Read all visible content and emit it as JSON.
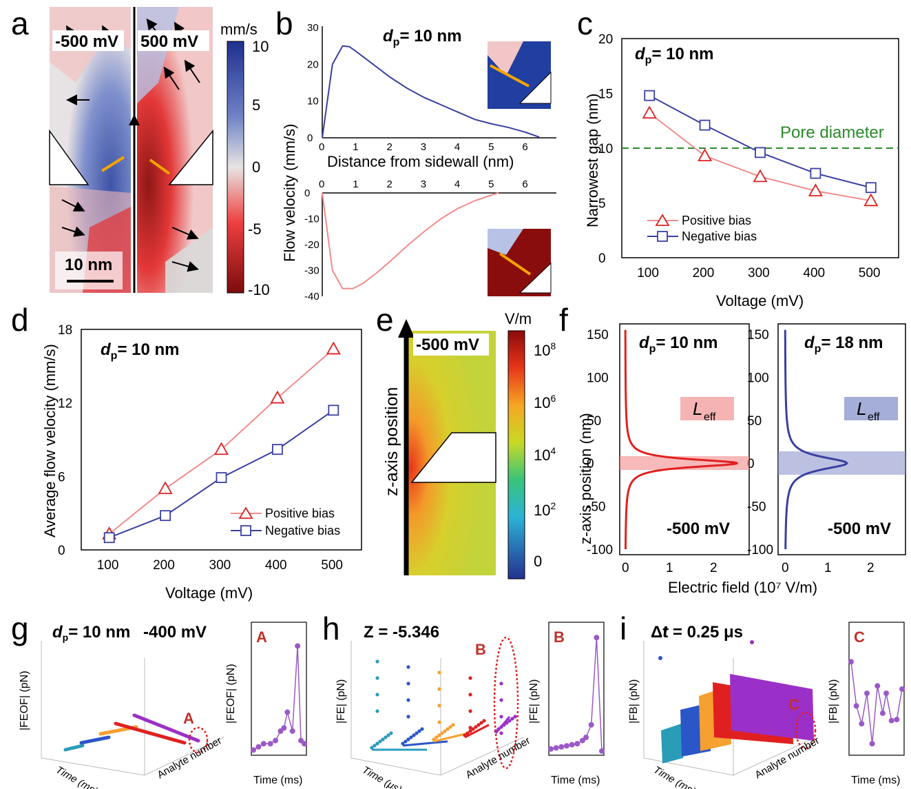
{
  "panels": {
    "a": {
      "letter": "a",
      "left_label": "-500 mV",
      "right_label": "500 mV",
      "scale_bar": "10 nm",
      "colorbar_unit": "mm/s",
      "colorbar_ticks": [
        "10",
        "5",
        "0",
        "-5",
        "-10"
      ]
    },
    "b": {
      "letter": "b",
      "title": "= 10 nm",
      "ylabel": "Flow velocity (mm/s)",
      "xlabel": "Distance from sidewall (nm)"
    },
    "c": {
      "letter": "c",
      "title": "= 10 nm",
      "ylabel": "Narrowest gap (nm)",
      "xlabel": "Voltage (mV)",
      "ref_label": "Pore diameter",
      "legend_pos": "Positive bias",
      "legend_neg": "Negative bias"
    },
    "d": {
      "letter": "d",
      "title": "= 10 nm",
      "ylabel": "Average flow velocity (mm/s)",
      "xlabel": "Voltage (mV)",
      "legend_pos": "Positive bias",
      "legend_neg": "Negative bias"
    },
    "e": {
      "letter": "e",
      "label": "-500 mV",
      "axis_label": "z-axis position",
      "colorbar_unit": "V/m",
      "colorbar_ticks": [
        "108",
        "106",
        "104",
        "102",
        "0"
      ]
    },
    "f": {
      "letter": "f",
      "left_title": "= 10 nm",
      "right_title": "= 18 nm",
      "ylabel": "z-axis position (nm)",
      "xlabel": "Electric field (10⁷ V/m)",
      "bias": "-500 mV",
      "leff": "L",
      "leff_sub": "eff"
    },
    "g": {
      "letter": "g",
      "title": "= 10 nm",
      "bias": "-400 mV",
      "zlabel": "|FEOF| (pN)",
      "marker": "A",
      "inset_ylabel": "|FEOF| (pN)",
      "inset_xlabel": "Time (ms)",
      "xaxis": "Time (ms)",
      "yaxis": "Analyte number"
    },
    "h": {
      "letter": "h",
      "title": "Z = -5.346",
      "zlabel": "|FE| (pN)",
      "marker": "B",
      "inset_ylabel": "|FE| (pN)",
      "inset_xlabel": "Time (ms)",
      "xaxis": "Time (μs)",
      "yaxis": "Analyte number"
    },
    "i": {
      "letter": "i",
      "title": "t = 0.25 μs",
      "zlabel": "|FB| (pN)",
      "marker": "C",
      "inset_ylabel": "|FB| (pN)",
      "inset_xlabel": "Time (ms)",
      "xaxis": "Time (ms)",
      "yaxis": "Analyte number"
    }
  },
  "chart_data": [
    {
      "type": "line",
      "panel": "b-top",
      "x": [
        0,
        0.3,
        0.6,
        0.8,
        1,
        1.5,
        2,
        2.5,
        3,
        3.5,
        4,
        4.5,
        5,
        5.5,
        6,
        6.4
      ],
      "values": [
        0,
        20,
        25,
        24.8,
        23.5,
        20,
        16.5,
        13.5,
        11,
        9,
        7,
        5,
        3.8,
        2.8,
        1.5,
        0.2
      ],
      "xlim": [
        0,
        6.5
      ],
      "ylim": [
        0,
        30
      ],
      "color": "#3a3fa0"
    },
    {
      "type": "line",
      "panel": "b-bottom",
      "x": [
        0,
        0.3,
        0.6,
        0.9,
        1.2,
        1.6,
        2,
        2.5,
        3,
        3.5,
        4,
        4.5,
        5,
        5.2
      ],
      "values": [
        0,
        -30,
        -37,
        -37,
        -35,
        -31,
        -26.5,
        -20.5,
        -15,
        -10,
        -6,
        -3,
        -0.8,
        0
      ],
      "xlim": [
        0,
        6.5
      ],
      "ylim": [
        -40,
        0
      ],
      "color": "#f28b8b"
    },
    {
      "type": "line",
      "panel": "c",
      "categories": [
        100,
        200,
        300,
        400,
        500
      ],
      "series": [
        {
          "name": "Positive bias",
          "values": [
            13.2,
            9.3,
            7.4,
            6.1,
            5.2
          ],
          "color": "#f28b8b"
        },
        {
          "name": "Negative bias",
          "values": [
            14.8,
            12.1,
            9.6,
            7.7,
            6.4
          ],
          "color": "#3a3fa0"
        }
      ],
      "ref": 10,
      "ylim": [
        0,
        20
      ],
      "xlim": [
        50,
        550
      ]
    },
    {
      "type": "line",
      "panel": "d",
      "categories": [
        100,
        200,
        300,
        400,
        500
      ],
      "series": [
        {
          "name": "Positive bias",
          "values": [
            1.3,
            5,
            8.2,
            12.4,
            16.4
          ],
          "color": "#f28b8b"
        },
        {
          "name": "Negative bias",
          "values": [
            1,
            2.8,
            5.9,
            8.2,
            11.4
          ],
          "color": "#3a3fa0"
        }
      ],
      "ylim": [
        0,
        18
      ],
      "xlim": [
        50,
        550
      ]
    },
    {
      "type": "line",
      "panel": "f-left",
      "ylim": [
        -100,
        150
      ],
      "xlim": [
        0,
        2.5
      ],
      "peak": 2.55,
      "color": "#e02020"
    },
    {
      "type": "line",
      "panel": "f-right",
      "ylim": [
        -100,
        150
      ],
      "xlim": [
        0,
        2.5
      ],
      "peak": 1.45,
      "color": "#3a3fa0"
    },
    {
      "type": "line",
      "panel": "g-inset",
      "x": [
        6.998,
        6.9983,
        6.9986,
        6.999,
        6.9993,
        6.9996,
        6.9998,
        7.0,
        7.0003,
        7.0006,
        7.0008,
        7.001
      ],
      "values": [
        0.01,
        0.02,
        0.03,
        0.03,
        0.04,
        0.07,
        0.08,
        0.13,
        0.07,
        0.34,
        0.04,
        0.03
      ],
      "ylim": [
        0,
        0.4
      ],
      "color": "#9b59c6"
    },
    {
      "type": "line",
      "panel": "h-inset",
      "x": [
        6.998,
        6.9983,
        6.9986,
        6.9989,
        6.9992,
        6.9995,
        6.9998,
        7.0,
        7.0003,
        7.0006,
        7.0009
      ],
      "values": [
        0.4,
        0.5,
        0.6,
        0.7,
        0.8,
        0.9,
        1.2,
        1.5,
        2.7,
        11,
        0.2
      ],
      "ylim": [
        0,
        12
      ],
      "color": "#9b59c6"
    },
    {
      "type": "line",
      "panel": "i-inset",
      "x": [
        6.998,
        6.9983,
        6.9986,
        6.9989,
        6.9992,
        6.9995,
        6.9998,
        7.0,
        7.0003,
        7.0006,
        7.0009
      ],
      "values": [
        0.87,
        0.45,
        0.28,
        0.57,
        0.09,
        0.64,
        0.38,
        0.57,
        0.31,
        0.32,
        0.61
      ],
      "ylim": [
        0,
        1.2
      ],
      "color": "#9b59c6"
    }
  ]
}
